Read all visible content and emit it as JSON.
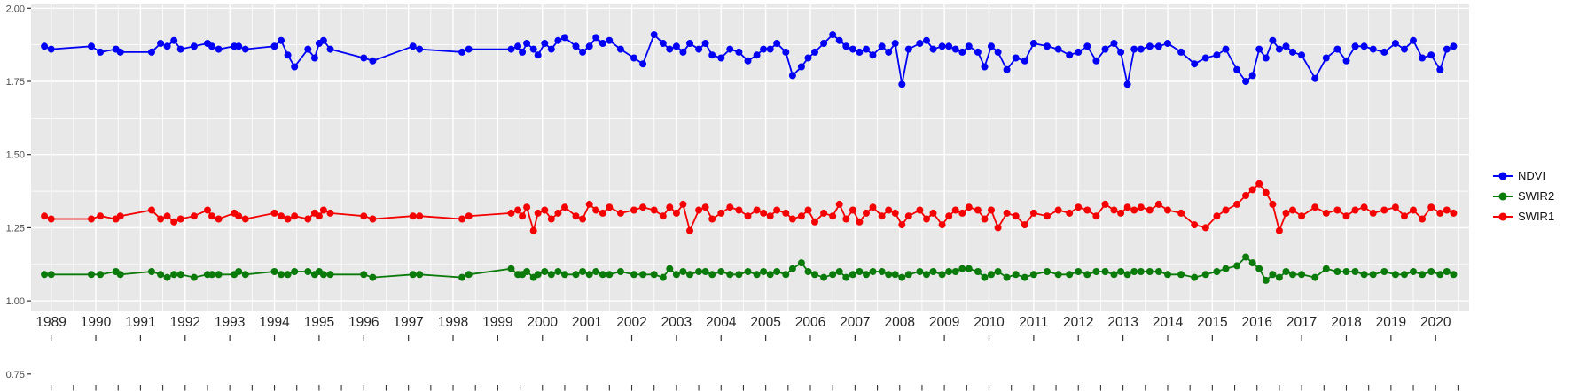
{
  "chart_data": {
    "type": "line",
    "title": "",
    "xlabel": "",
    "ylabel": "",
    "grid": true,
    "legend_position": "right",
    "panel_background_color": "#e8e8e8",
    "gridline_color": "#ffffff",
    "x_range": [
      1988.55,
      2020.75
    ],
    "y_range_panel": [
      0.964,
      2.013
    ],
    "x_ticks": [
      1989,
      1990,
      1991,
      1992,
      1993,
      1994,
      1995,
      1996,
      1997,
      1998,
      1999,
      2000,
      2001,
      2002,
      2003,
      2004,
      2005,
      2006,
      2007,
      2008,
      2009,
      2010,
      2011,
      2012,
      2013,
      2014,
      2015,
      2016,
      2017,
      2018,
      2019,
      2020
    ],
    "y_ticks": [
      2.0,
      1.75,
      1.5,
      1.25,
      1.0,
      0.75
    ],
    "y_tick_labels": [
      "2.00",
      "1.75",
      "1.50",
      "1.25",
      "1.00",
      "0.75"
    ],
    "x": [
      1988.85,
      1989.0,
      1989.9,
      1990.1,
      1990.45,
      1990.55,
      1991.25,
      1991.45,
      1991.6,
      1991.75,
      1991.9,
      1992.2,
      1992.5,
      1992.6,
      1992.75,
      1993.1,
      1993.2,
      1993.35,
      1994.0,
      1994.15,
      1994.3,
      1994.45,
      1994.75,
      1994.9,
      1995.0,
      1995.1,
      1995.25,
      1996.0,
      1996.2,
      1997.1,
      1997.25,
      1998.2,
      1998.35,
      1999.3,
      1999.45,
      1999.55,
      1999.65,
      1999.8,
      1999.9,
      2000.05,
      2000.2,
      2000.35,
      2000.5,
      2000.75,
      2000.9,
      2001.05,
      2001.2,
      2001.35,
      2001.5,
      2001.75,
      2002.05,
      2002.25,
      2002.5,
      2002.7,
      2002.85,
      2003.0,
      2003.15,
      2003.3,
      2003.5,
      2003.65,
      2003.8,
      2004.0,
      2004.2,
      2004.4,
      2004.6,
      2004.8,
      2004.95,
      2005.1,
      2005.25,
      2005.45,
      2005.6,
      2005.8,
      2005.95,
      2006.1,
      2006.3,
      2006.5,
      2006.65,
      2006.8,
      2006.95,
      2007.1,
      2007.25,
      2007.4,
      2007.6,
      2007.75,
      2007.9,
      2008.05,
      2008.2,
      2008.45,
      2008.6,
      2008.75,
      2008.95,
      2009.1,
      2009.25,
      2009.4,
      2009.55,
      2009.75,
      2009.9,
      2010.05,
      2010.2,
      2010.4,
      2010.6,
      2010.8,
      2011.0,
      2011.3,
      2011.55,
      2011.8,
      2012.0,
      2012.2,
      2012.4,
      2012.6,
      2012.8,
      2012.95,
      2013.1,
      2013.25,
      2013.4,
      2013.6,
      2013.8,
      2014.0,
      2014.3,
      2014.6,
      2014.85,
      2015.1,
      2015.3,
      2015.55,
      2015.75,
      2015.9,
      2016.05,
      2016.2,
      2016.35,
      2016.5,
      2016.65,
      2016.8,
      2017.0,
      2017.3,
      2017.55,
      2017.8,
      2018.0,
      2018.2,
      2018.4,
      2018.6,
      2018.85,
      2019.1,
      2019.3,
      2019.5,
      2019.7,
      2019.9,
      2020.1,
      2020.25,
      2020.4
    ],
    "series": [
      {
        "name": "NDVI",
        "color": "#0000f5",
        "values": [
          1.87,
          1.86,
          1.87,
          1.85,
          1.86,
          1.85,
          1.85,
          1.88,
          1.87,
          1.89,
          1.86,
          1.87,
          1.88,
          1.87,
          1.86,
          1.87,
          1.87,
          1.86,
          1.87,
          1.89,
          1.84,
          1.8,
          1.86,
          1.83,
          1.88,
          1.89,
          1.86,
          1.83,
          1.82,
          1.87,
          1.86,
          1.85,
          1.86,
          1.86,
          1.87,
          1.85,
          1.88,
          1.86,
          1.84,
          1.88,
          1.86,
          1.89,
          1.9,
          1.87,
          1.85,
          1.87,
          1.9,
          1.88,
          1.89,
          1.86,
          1.83,
          1.81,
          1.91,
          1.88,
          1.86,
          1.87,
          1.85,
          1.88,
          1.86,
          1.88,
          1.84,
          1.83,
          1.86,
          1.85,
          1.82,
          1.84,
          1.86,
          1.86,
          1.88,
          1.85,
          1.77,
          1.8,
          1.83,
          1.85,
          1.88,
          1.91,
          1.89,
          1.87,
          1.86,
          1.85,
          1.86,
          1.84,
          1.87,
          1.85,
          1.88,
          1.74,
          1.86,
          1.88,
          1.89,
          1.86,
          1.87,
          1.87,
          1.86,
          1.85,
          1.87,
          1.85,
          1.8,
          1.87,
          1.85,
          1.79,
          1.83,
          1.82,
          1.88,
          1.87,
          1.86,
          1.84,
          1.85,
          1.87,
          1.82,
          1.86,
          1.88,
          1.85,
          1.74,
          1.86,
          1.86,
          1.87,
          1.87,
          1.88,
          1.85,
          1.81,
          1.83,
          1.84,
          1.86,
          1.79,
          1.75,
          1.77,
          1.86,
          1.83,
          1.89,
          1.86,
          1.87,
          1.85,
          1.84,
          1.76,
          1.83,
          1.86,
          1.82,
          1.87,
          1.87,
          1.86,
          1.85,
          1.88,
          1.86,
          1.89,
          1.83,
          1.84,
          1.79,
          1.86,
          1.87
        ]
      },
      {
        "name": "SWIR2",
        "color": "#0a7a0a",
        "values": [
          1.09,
          1.09,
          1.09,
          1.09,
          1.1,
          1.09,
          1.1,
          1.09,
          1.08,
          1.09,
          1.09,
          1.08,
          1.09,
          1.09,
          1.09,
          1.09,
          1.1,
          1.09,
          1.1,
          1.09,
          1.09,
          1.1,
          1.1,
          1.09,
          1.1,
          1.09,
          1.09,
          1.09,
          1.08,
          1.09,
          1.09,
          1.08,
          1.09,
          1.11,
          1.09,
          1.09,
          1.1,
          1.08,
          1.09,
          1.1,
          1.09,
          1.1,
          1.09,
          1.09,
          1.1,
          1.09,
          1.1,
          1.09,
          1.09,
          1.1,
          1.09,
          1.09,
          1.09,
          1.08,
          1.11,
          1.09,
          1.1,
          1.09,
          1.1,
          1.1,
          1.09,
          1.1,
          1.09,
          1.09,
          1.1,
          1.09,
          1.1,
          1.09,
          1.1,
          1.09,
          1.11,
          1.13,
          1.1,
          1.09,
          1.08,
          1.09,
          1.1,
          1.08,
          1.09,
          1.1,
          1.09,
          1.1,
          1.1,
          1.09,
          1.09,
          1.08,
          1.09,
          1.1,
          1.09,
          1.1,
          1.09,
          1.1,
          1.1,
          1.11,
          1.11,
          1.1,
          1.08,
          1.09,
          1.1,
          1.08,
          1.09,
          1.08,
          1.09,
          1.1,
          1.09,
          1.09,
          1.1,
          1.09,
          1.1,
          1.1,
          1.09,
          1.1,
          1.09,
          1.1,
          1.1,
          1.1,
          1.1,
          1.09,
          1.09,
          1.08,
          1.09,
          1.1,
          1.11,
          1.12,
          1.15,
          1.13,
          1.11,
          1.07,
          1.09,
          1.08,
          1.1,
          1.09,
          1.09,
          1.08,
          1.11,
          1.1,
          1.1,
          1.1,
          1.09,
          1.09,
          1.1,
          1.09,
          1.09,
          1.1,
          1.09,
          1.1,
          1.09,
          1.1,
          1.09
        ]
      },
      {
        "name": "SWIR1",
        "color": "#f50000",
        "values": [
          1.29,
          1.28,
          1.28,
          1.29,
          1.28,
          1.29,
          1.31,
          1.28,
          1.29,
          1.27,
          1.28,
          1.29,
          1.31,
          1.29,
          1.28,
          1.3,
          1.29,
          1.28,
          1.3,
          1.29,
          1.28,
          1.29,
          1.28,
          1.3,
          1.29,
          1.31,
          1.3,
          1.29,
          1.28,
          1.29,
          1.29,
          1.28,
          1.29,
          1.3,
          1.31,
          1.29,
          1.32,
          1.24,
          1.3,
          1.31,
          1.28,
          1.3,
          1.32,
          1.29,
          1.28,
          1.33,
          1.31,
          1.3,
          1.32,
          1.3,
          1.31,
          1.32,
          1.31,
          1.29,
          1.32,
          1.3,
          1.33,
          1.24,
          1.31,
          1.32,
          1.28,
          1.3,
          1.32,
          1.31,
          1.29,
          1.31,
          1.3,
          1.29,
          1.31,
          1.3,
          1.28,
          1.29,
          1.31,
          1.27,
          1.3,
          1.29,
          1.33,
          1.28,
          1.31,
          1.27,
          1.3,
          1.32,
          1.29,
          1.31,
          1.3,
          1.26,
          1.29,
          1.31,
          1.28,
          1.3,
          1.26,
          1.29,
          1.31,
          1.3,
          1.32,
          1.31,
          1.28,
          1.31,
          1.25,
          1.3,
          1.29,
          1.26,
          1.3,
          1.29,
          1.31,
          1.3,
          1.32,
          1.31,
          1.29,
          1.33,
          1.31,
          1.3,
          1.32,
          1.31,
          1.32,
          1.31,
          1.33,
          1.31,
          1.3,
          1.26,
          1.25,
          1.29,
          1.31,
          1.33,
          1.36,
          1.38,
          1.4,
          1.37,
          1.33,
          1.24,
          1.3,
          1.31,
          1.29,
          1.32,
          1.3,
          1.31,
          1.29,
          1.31,
          1.32,
          1.3,
          1.31,
          1.32,
          1.29,
          1.31,
          1.28,
          1.32,
          1.3,
          1.31,
          1.3
        ]
      }
    ]
  },
  "legend": {
    "items": [
      {
        "label": "NDVI",
        "color": "#0000f5"
      },
      {
        "label": "SWIR2",
        "color": "#0a7a0a"
      },
      {
        "label": "SWIR1",
        "color": "#f50000"
      }
    ]
  }
}
